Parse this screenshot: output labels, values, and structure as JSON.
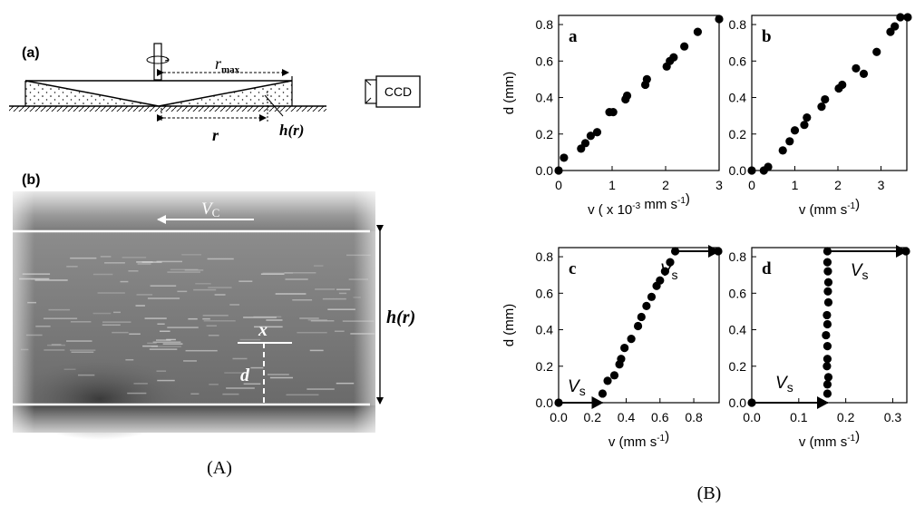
{
  "panel_A": {
    "caption": "(A)",
    "schematic": {
      "label": "(a)",
      "r_max": "r",
      "r_max_sub": "max",
      "r": "r",
      "h_r": "h(r)",
      "camera": "CCD"
    },
    "image": {
      "label": "(b)",
      "vc": "V",
      "vc_sub": "C",
      "x": "x",
      "d": "d",
      "h_r": "h(r)"
    }
  },
  "panel_B": {
    "caption": "(B)"
  },
  "chart_data": [
    {
      "type": "scatter",
      "panel_label": "a",
      "xlabel": "v ( x 10-3 mm s-1)",
      "ylabel": "d (mm)",
      "xlim": [
        0,
        3
      ],
      "ylim": [
        0,
        0.85
      ],
      "x_ticks": [
        "0",
        "1",
        "2",
        "3"
      ],
      "y_ticks": [
        "0.0",
        "0.2",
        "0.4",
        "0.6",
        "0.8"
      ],
      "x": [
        0.0,
        0.1,
        0.42,
        0.5,
        0.6,
        0.72,
        0.95,
        1.02,
        1.25,
        1.28,
        1.62,
        1.65,
        2.02,
        2.08,
        2.15,
        2.35,
        2.6,
        3.0
      ],
      "y": [
        0.0,
        0.07,
        0.12,
        0.15,
        0.19,
        0.21,
        0.32,
        0.32,
        0.39,
        0.41,
        0.47,
        0.5,
        0.57,
        0.6,
        0.62,
        0.68,
        0.76,
        0.83
      ]
    },
    {
      "type": "scatter",
      "panel_label": "b",
      "xlabel": "v (mm s-1)",
      "ylabel": "",
      "xlim": [
        0,
        3.6
      ],
      "ylim": [
        0,
        0.85
      ],
      "x_ticks": [
        "0",
        "1",
        "2",
        "3"
      ],
      "y_ticks": [
        "0.0",
        "0.2",
        "0.4",
        "0.6",
        "0.8"
      ],
      "x": [
        0.0,
        0.28,
        0.38,
        0.72,
        0.88,
        1.0,
        1.22,
        1.28,
        1.62,
        1.7,
        2.02,
        2.1,
        2.42,
        2.6,
        2.9,
        3.22,
        3.32,
        3.45,
        3.62
      ],
      "y": [
        0.0,
        0.0,
        0.02,
        0.11,
        0.16,
        0.22,
        0.25,
        0.29,
        0.35,
        0.39,
        0.45,
        0.47,
        0.56,
        0.53,
        0.65,
        0.76,
        0.79,
        0.84,
        0.84
      ]
    },
    {
      "type": "scatter",
      "panel_label": "c",
      "xlabel": "v (mm s-1)",
      "ylabel": "d (mm)",
      "xlim": [
        0,
        0.95
      ],
      "ylim": [
        0,
        0.85
      ],
      "x_ticks": [
        "0.0",
        "0.2",
        "0.4",
        "0.6",
        "0.8"
      ],
      "y_ticks": [
        "0.0",
        "0.2",
        "0.4",
        "0.6",
        "0.8"
      ],
      "annotation_top": "V",
      "annotation_bottom": "V",
      "annotation_sub": "s",
      "x": [
        0.26,
        0.29,
        0.33,
        0.36,
        0.37,
        0.39,
        0.43,
        0.47,
        0.49,
        0.52,
        0.55,
        0.58,
        0.6,
        0.63,
        0.66,
        0.69
      ],
      "y": [
        0.05,
        0.12,
        0.15,
        0.21,
        0.24,
        0.3,
        0.35,
        0.42,
        0.47,
        0.53,
        0.58,
        0.64,
        0.67,
        0.72,
        0.77,
        0.83
      ]
    },
    {
      "type": "scatter",
      "panel_label": "d",
      "xlabel": "v (mm s-1)",
      "ylabel": "",
      "xlim": [
        0,
        0.33
      ],
      "ylim": [
        0,
        0.85
      ],
      "x_ticks": [
        "0.0",
        "0.1",
        "0.2",
        "0.3"
      ],
      "y_ticks": [
        "0.0",
        "0.2",
        "0.4",
        "0.6",
        "0.8"
      ],
      "annotation_top": "V",
      "annotation_bottom": "V",
      "annotation_sub": "s",
      "x": [
        0.161,
        0.161,
        0.163,
        0.16,
        0.161,
        0.161,
        0.158,
        0.161,
        0.16,
        0.163,
        0.162,
        0.163,
        0.162,
        0.161,
        0.161
      ],
      "y": [
        0.05,
        0.1,
        0.14,
        0.2,
        0.24,
        0.31,
        0.37,
        0.43,
        0.48,
        0.55,
        0.61,
        0.66,
        0.72,
        0.77,
        0.83
      ]
    }
  ]
}
